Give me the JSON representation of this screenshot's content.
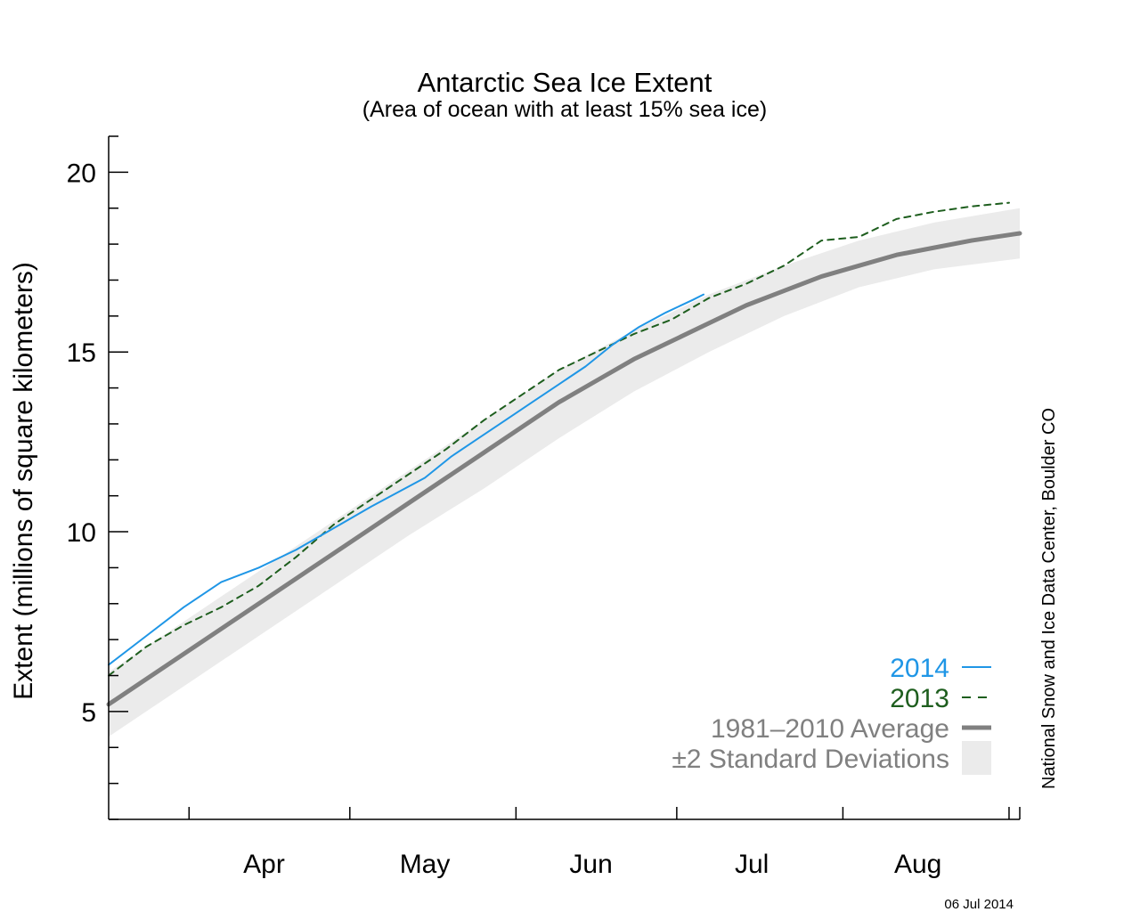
{
  "chart_data": {
    "type": "line",
    "title": "Antarctic Sea Ice Extent",
    "subtitle": "(Area of ocean with at least 15% sea ice)",
    "ylabel": "Extent (millions of square kilometers)",
    "xlabel": "",
    "credit": "National Snow and Ice Data Center, Boulder CO",
    "date_stamp": "06 Jul 2014",
    "xlim": [
      "Mar 17",
      "Sep 03"
    ],
    "ylim": [
      2,
      21
    ],
    "yticks": [
      5,
      10,
      15,
      20
    ],
    "yminor_step": 1,
    "xticks_major": [
      "Apr 15",
      "May 15",
      "Jun 15",
      "Jul 15",
      "Aug 15"
    ],
    "month_boundaries": [
      "Apr 1",
      "May 1",
      "Jun 1",
      "Jul 1",
      "Aug 1",
      "Sep 1"
    ],
    "grid": false,
    "legend_position": "bottom-right",
    "series": [
      {
        "name": "2014",
        "style": "solid",
        "color": "#1f96e6",
        "x": [
          "Mar 17",
          "Mar 24",
          "Mar 31",
          "Apr 7",
          "Apr 14",
          "Apr 21",
          "Apr 28",
          "May 5",
          "May 10",
          "May 15",
          "May 20",
          "May 25",
          "May 30",
          "Jun 4",
          "Jun 9",
          "Jun 14",
          "Jun 19",
          "Jun 24",
          "Jun 29",
          "Jul 4",
          "Jul 6"
        ],
        "values": [
          6.3,
          7.1,
          7.9,
          8.6,
          9.0,
          9.5,
          10.1,
          10.7,
          11.1,
          11.5,
          12.1,
          12.6,
          13.1,
          13.6,
          14.1,
          14.6,
          15.2,
          15.7,
          16.1,
          16.45,
          16.6
        ]
      },
      {
        "name": "2013",
        "style": "dashed",
        "color": "#1e5e1e",
        "x": [
          "Mar 17",
          "Mar 24",
          "Mar 31",
          "Apr 7",
          "Apr 14",
          "Apr 21",
          "Apr 28",
          "May 5",
          "May 12",
          "May 19",
          "May 26",
          "Jun 2",
          "Jun 9",
          "Jun 16",
          "Jun 23",
          "Jun 30",
          "Jul 7",
          "Jul 14",
          "Jul 21",
          "Jul 28",
          "Aug 4",
          "Aug 11",
          "Aug 18",
          "Aug 25",
          "Sep 1"
        ],
        "values": [
          6.0,
          6.8,
          7.4,
          7.9,
          8.5,
          9.3,
          10.2,
          10.9,
          11.6,
          12.3,
          13.1,
          13.8,
          14.5,
          15.0,
          15.5,
          15.9,
          16.5,
          16.9,
          17.4,
          18.1,
          18.2,
          18.7,
          18.9,
          19.05,
          19.15
        ]
      },
      {
        "name": "1981–2010 Average",
        "style": "thick",
        "color": "#808080",
        "x": [
          "Mar 17",
          "Mar 24",
          "Mar 31",
          "Apr 7",
          "Apr 14",
          "Apr 21",
          "Apr 28",
          "May 5",
          "May 12",
          "May 19",
          "May 26",
          "Jun 2",
          "Jun 9",
          "Jun 16",
          "Jun 23",
          "Jun 30",
          "Jul 7",
          "Jul 14",
          "Jul 21",
          "Jul 28",
          "Aug 4",
          "Aug 11",
          "Aug 18",
          "Aug 25",
          "Sep 3"
        ],
        "values": [
          5.2,
          5.9,
          6.6,
          7.3,
          8.0,
          8.7,
          9.4,
          10.1,
          10.8,
          11.5,
          12.2,
          12.9,
          13.6,
          14.2,
          14.8,
          15.3,
          15.8,
          16.3,
          16.7,
          17.1,
          17.4,
          17.7,
          17.9,
          18.1,
          18.3
        ]
      },
      {
        "name": "±2 Standard Deviations",
        "style": "band",
        "color": "#ebebeb",
        "x": [
          "Mar 17",
          "Mar 31",
          "Apr 14",
          "Apr 28",
          "May 12",
          "May 26",
          "Jun 9",
          "Jun 23",
          "Jul 7",
          "Jul 21",
          "Aug 4",
          "Aug 18",
          "Sep 3"
        ],
        "low": [
          4.3,
          5.7,
          7.1,
          8.5,
          9.9,
          11.2,
          12.6,
          13.9,
          15.0,
          16.0,
          16.8,
          17.3,
          17.6
        ],
        "high": [
          6.1,
          7.5,
          8.9,
          10.3,
          11.7,
          13.1,
          14.5,
          15.6,
          16.6,
          17.4,
          18.1,
          18.6,
          19.0
        ]
      }
    ]
  }
}
